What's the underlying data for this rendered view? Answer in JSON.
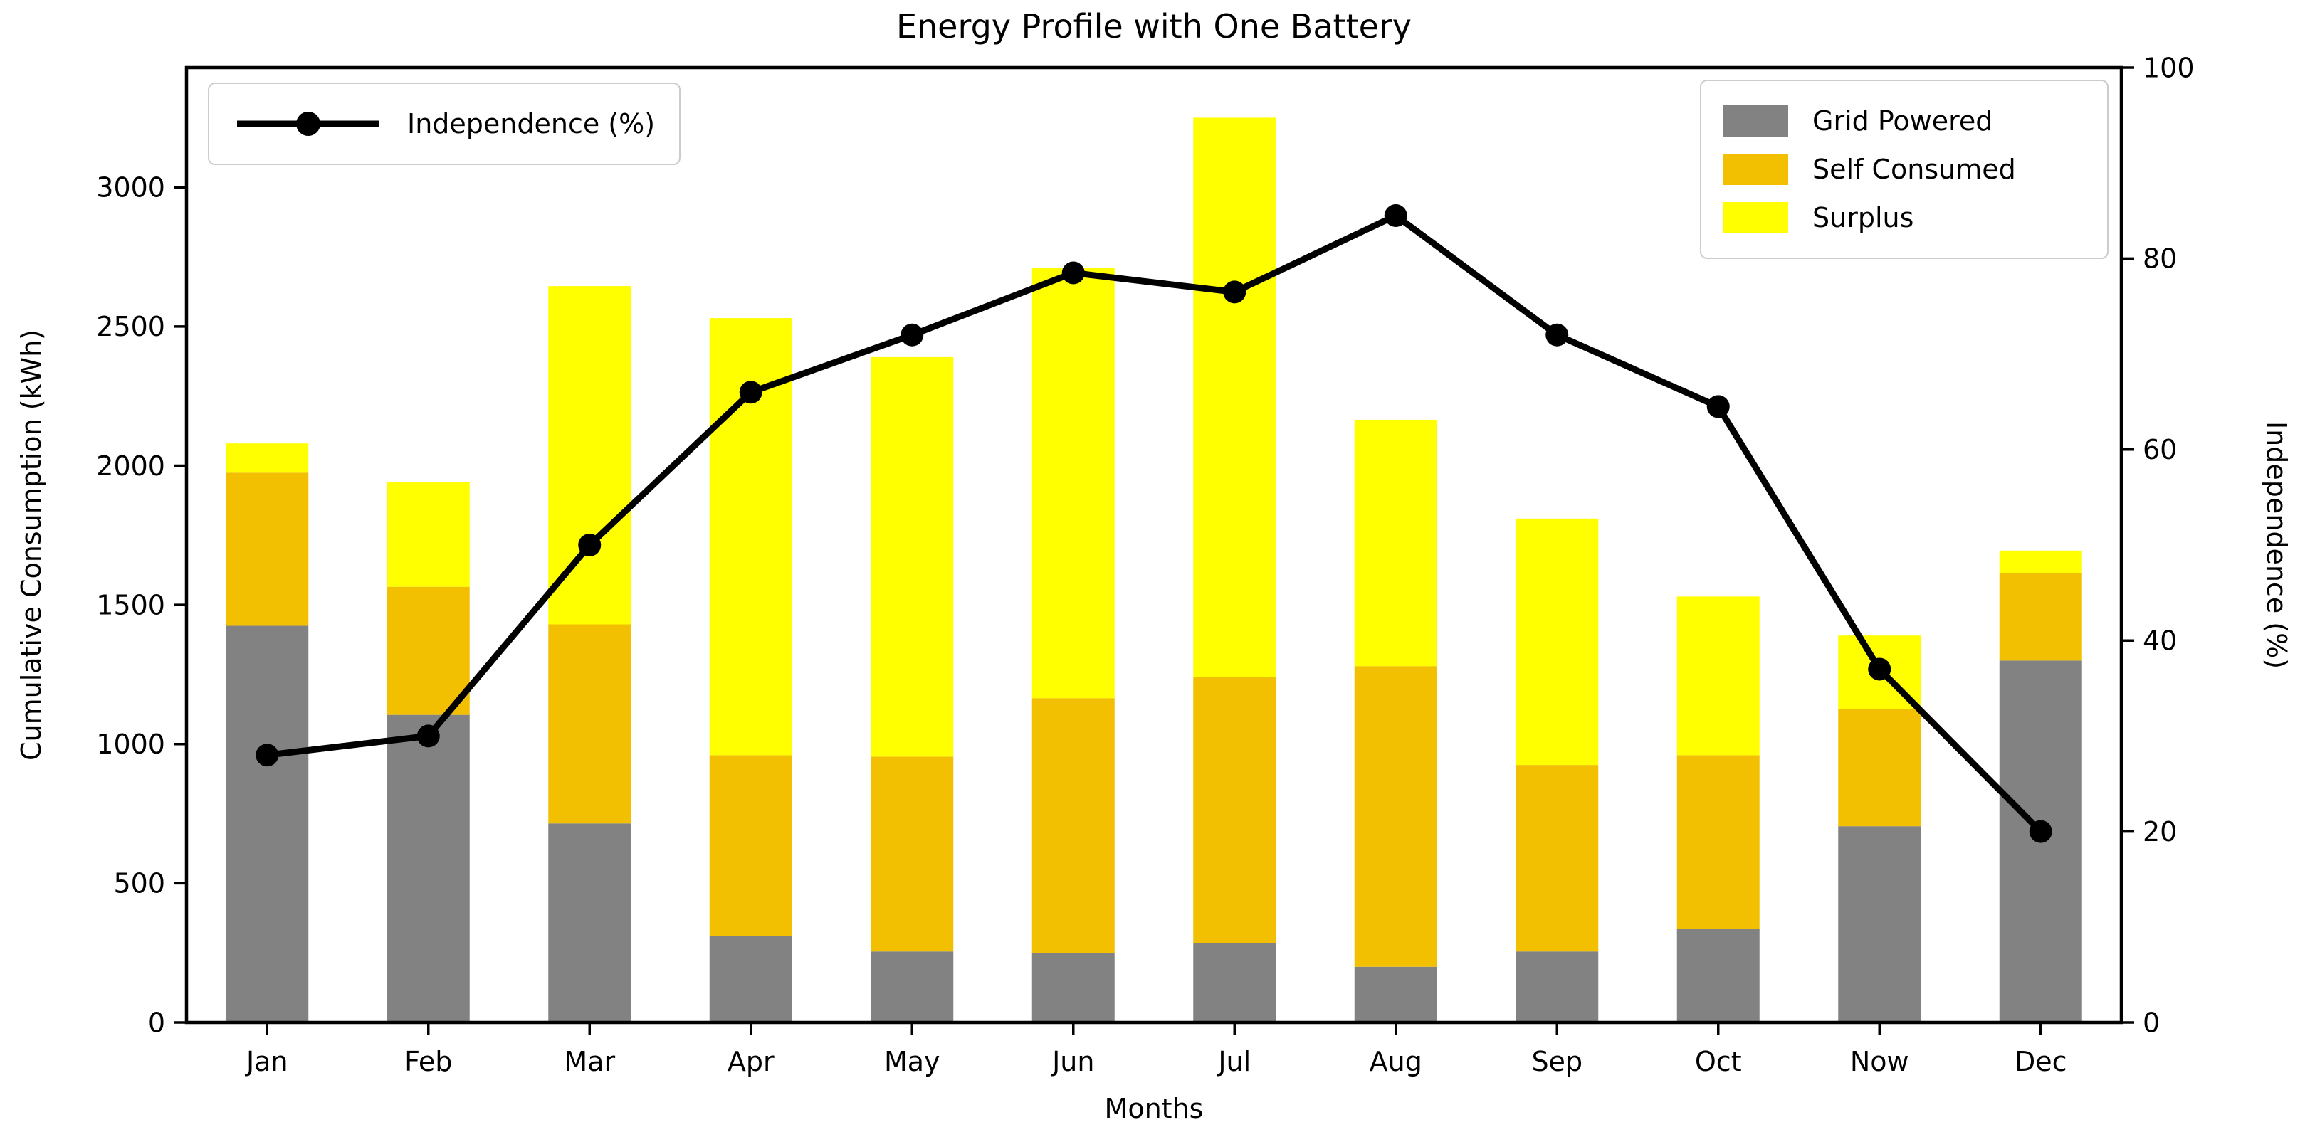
{
  "chart_data": {
    "type": "bar",
    "stacked": true,
    "title": "Energy Profile with One Battery",
    "xlabel": "Months",
    "ylabel_left": "Cumulative Consumption (kWh)",
    "ylabel_right": "Independence (%)",
    "categories": [
      "Jan",
      "Feb",
      "Mar",
      "Apr",
      "May",
      "Jun",
      "Jul",
      "Aug",
      "Sep",
      "Oct",
      "Now",
      "Dec"
    ],
    "series": [
      {
        "key": "grid",
        "name": "Grid Powered",
        "color": "#828282",
        "values": [
          1425,
          1105,
          715,
          310,
          255,
          250,
          285,
          200,
          255,
          335,
          705,
          1300
        ]
      },
      {
        "key": "self",
        "name": "Self Consumed",
        "color": "#F2C000",
        "values": [
          550,
          460,
          715,
          650,
          700,
          915,
          955,
          1080,
          670,
          625,
          420,
          315
        ]
      },
      {
        "key": "surplus",
        "name": "Surplus",
        "color": "#FFFF00",
        "values": [
          105,
          375,
          1215,
          1570,
          1435,
          1545,
          2010,
          885,
          885,
          570,
          265,
          80
        ]
      }
    ],
    "bar_totals": [
      2080,
      1940,
      2645,
      2530,
      2390,
      2710,
      3250,
      2165,
      1810,
      1530,
      1390,
      1695
    ],
    "line_series": {
      "name": "Independence (%)",
      "axis": "right",
      "color": "#000000",
      "values": [
        28,
        30,
        50,
        66,
        72,
        78.5,
        76.5,
        84.5,
        72,
        64.5,
        37,
        20
      ]
    },
    "ylim_left": [
      0,
      3430
    ],
    "yticks_left": [
      0,
      500,
      1000,
      1500,
      2000,
      2500,
      3000
    ],
    "ylim_right": [
      0,
      100
    ],
    "yticks_right": [
      0,
      20,
      40,
      60,
      80,
      100
    ],
    "grid": false,
    "legend_line_position": "upper left",
    "legend_series_position": "upper right",
    "axis_color": "#000000",
    "background_color": "#ffffff"
  },
  "legend_line": {
    "label": "Independence (%)"
  },
  "legend_series": {
    "items": [
      {
        "label": "Grid Powered",
        "color": "#828282"
      },
      {
        "label": "Self Consumed",
        "color": "#F2C000"
      },
      {
        "label": "Surplus",
        "color": "#FFFF00"
      }
    ]
  }
}
